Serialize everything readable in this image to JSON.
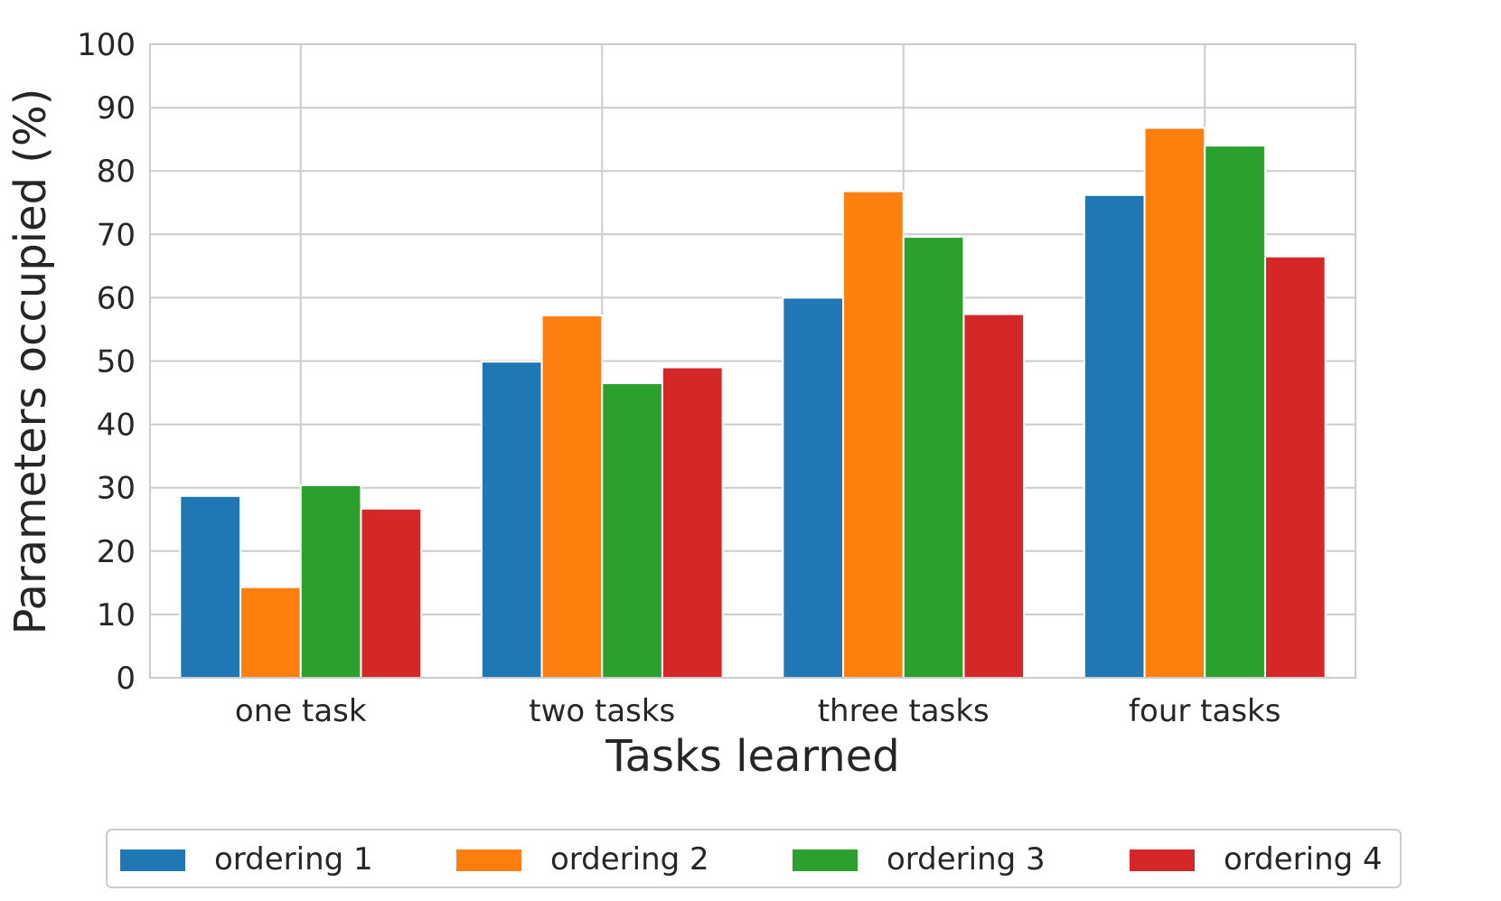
{
  "chart_data": {
    "type": "bar",
    "title": "",
    "xlabel": "Tasks learned",
    "ylabel": "Parameters occupied (%)",
    "ylim": [
      0,
      100
    ],
    "yticks": [
      0,
      10,
      20,
      30,
      40,
      50,
      60,
      70,
      80,
      90,
      100
    ],
    "categories": [
      "one task",
      "two tasks",
      "three tasks",
      "four tasks"
    ],
    "grid": true,
    "legend_position": "bottom",
    "series": [
      {
        "name": "ordering 1",
        "color": "#1f77b4",
        "values": [
          28.7,
          49.9,
          60.0,
          76.2
        ]
      },
      {
        "name": "ordering 2",
        "color": "#ff7f0e",
        "values": [
          14.3,
          57.2,
          76.8,
          86.8
        ]
      },
      {
        "name": "ordering 3",
        "color": "#2ca02c",
        "values": [
          30.4,
          46.5,
          69.6,
          84.0
        ]
      },
      {
        "name": "ordering 4",
        "color": "#d62728",
        "values": [
          26.7,
          49.0,
          57.4,
          66.5
        ]
      }
    ]
  }
}
